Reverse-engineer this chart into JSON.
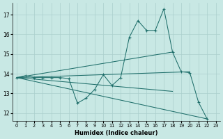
{
  "xlabel": "Humidex (Indice chaleur)",
  "x_ticks": [
    0,
    1,
    2,
    3,
    4,
    5,
    6,
    7,
    8,
    9,
    10,
    11,
    12,
    13,
    14,
    15,
    16,
    17,
    18,
    19,
    20,
    21,
    22,
    23
  ],
  "y_ticks": [
    12,
    13,
    14,
    15,
    16,
    17
  ],
  "xlim": [
    -0.5,
    23.5
  ],
  "ylim": [
    11.6,
    17.6
  ],
  "bg_color": "#c8e8e4",
  "line_color": "#1e6e6a",
  "grid_color": "#aacfcc",
  "main_line_x": [
    0,
    1,
    2,
    3,
    4,
    5,
    6,
    7,
    8,
    9,
    10,
    11,
    12,
    13,
    14,
    15,
    16,
    17,
    18,
    19,
    20,
    21,
    22
  ],
  "main_line_y": [
    13.8,
    13.9,
    13.8,
    13.8,
    13.8,
    13.8,
    13.75,
    12.5,
    12.75,
    13.2,
    13.95,
    13.4,
    13.8,
    15.85,
    16.7,
    16.2,
    16.2,
    17.3,
    15.1,
    14.1,
    14.05,
    12.55,
    11.7
  ],
  "trend_lines": [
    {
      "x": [
        0,
        18
      ],
      "y": [
        13.8,
        15.1
      ]
    },
    {
      "x": [
        0,
        22
      ],
      "y": [
        13.8,
        11.7
      ]
    },
    {
      "x": [
        0,
        20
      ],
      "y": [
        13.8,
        14.1
      ]
    },
    {
      "x": [
        0,
        18
      ],
      "y": [
        13.8,
        13.1
      ]
    }
  ]
}
